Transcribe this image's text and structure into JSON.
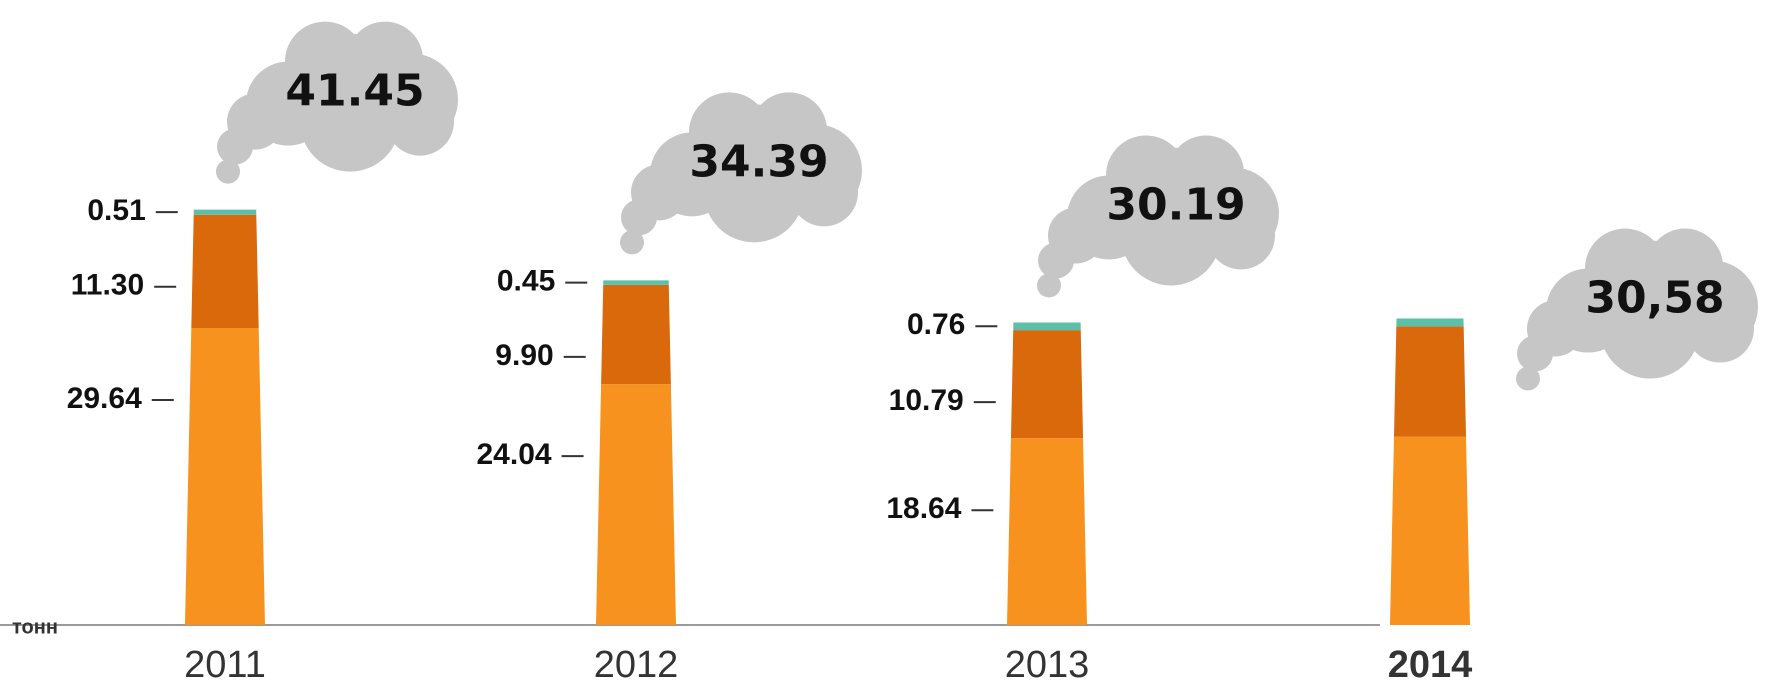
{
  "chart_data": {
    "type": "stacked-chimney",
    "y_label": "тонн",
    "categories": [
      "2011",
      "2012",
      "2013",
      "2014"
    ],
    "series": [
      {
        "color": "#f8921e",
        "values": [
          29.64,
          24.04,
          18.64,
          18.8
        ],
        "value_labels": [
          "29.64",
          "24.04",
          "18.64",
          null
        ]
      },
      {
        "color": "#d9690b",
        "values": [
          11.3,
          9.9,
          10.79,
          11.0
        ],
        "value_labels": [
          "11.30",
          "9.90",
          "10.79",
          null
        ]
      },
      {
        "color": "#5cbfa9",
        "values": [
          0.51,
          0.45,
          0.76,
          0.78
        ],
        "value_labels": [
          "0.51",
          "0.45",
          "0.76",
          null
        ]
      }
    ],
    "totals": [
      41.45,
      34.39,
      30.19,
      30.58
    ],
    "total_labels": [
      "41.45",
      "34.39",
      "30.19",
      "30,58"
    ],
    "cloud_color": "#c6c6c6",
    "ylim": [
      0,
      47
    ]
  }
}
